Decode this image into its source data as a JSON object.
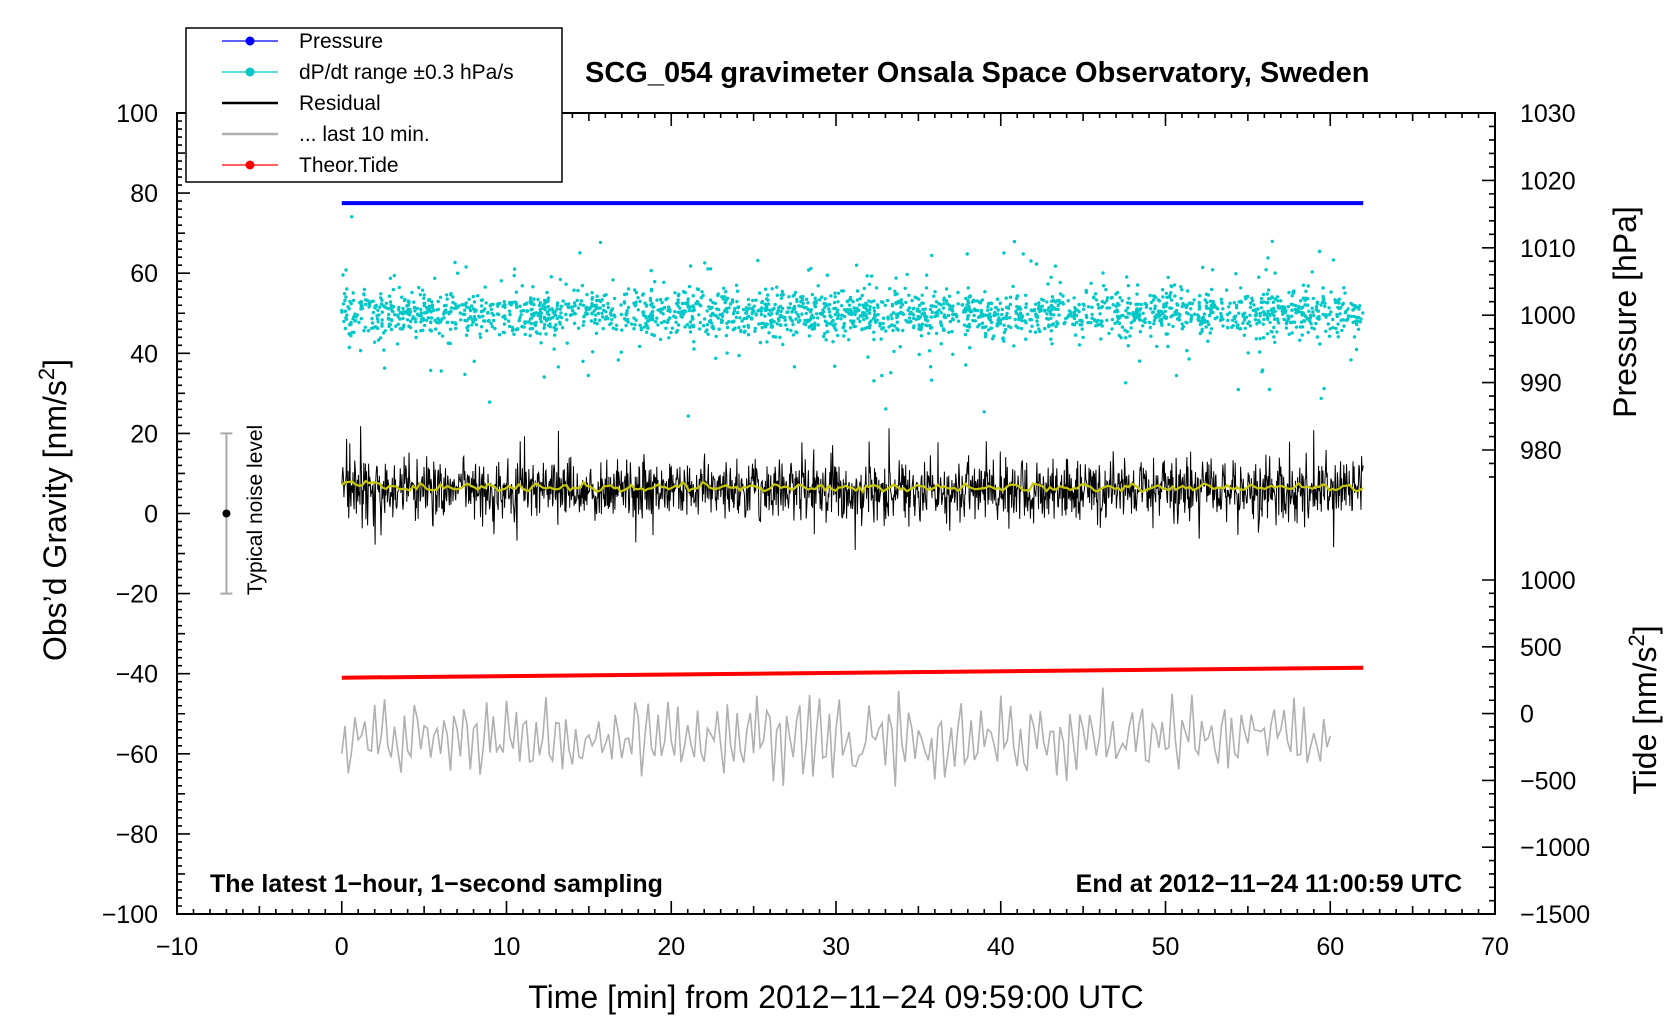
{
  "chart_data": {
    "type": "line",
    "title": "SCG_054 gravimeter Onsala Space Observatory, Sweden",
    "xlabel": "Time [min] from 2012−11−24 09:59:00 UTC",
    "ylabel_left": "Obs’d Gravity [nm/s2]",
    "ylabel_left_main": "Obs’d Gravity [nm/s",
    "ylabel_left_sup": "2",
    "ylabel_left_end": "]",
    "ylabel_right_pressure": "Pressure [hPa]",
    "ylabel_right_tide": "Tide [nm/s2]",
    "ylabel_right_tide_main": "Tide [nm/s",
    "ylabel_right_tide_sup": "2",
    "ylabel_right_tide_end": "]",
    "xlim": [
      -10,
      70
    ],
    "ylim_left": [
      -100,
      100
    ],
    "pressure_axis_range": [
      975,
      1030
    ],
    "tide_axis_range": [
      -1500,
      1000
    ],
    "x_ticks": [
      "−10",
      "0",
      "10",
      "20",
      "30",
      "40",
      "50",
      "60",
      "70"
    ],
    "y_ticks_left": [
      "100",
      "80",
      "60",
      "40",
      "20",
      "0",
      "−20",
      "−40",
      "−60",
      "−80",
      "−100"
    ],
    "y_ticks_pressure": [
      "1030",
      "1020",
      "1010",
      "1000",
      "990",
      "980"
    ],
    "y_ticks_tide": [
      "1000",
      "500",
      "0",
      "−500",
      "−1000",
      "−1500"
    ],
    "annotation_left": "The latest 1−hour, 1−second sampling",
    "annotation_right": "End at 2012−11−24 11:00:59 UTC",
    "noise_label": "Typical noise level",
    "noise_bar": {
      "x": -7,
      "center": 0,
      "low": -20,
      "high": 20
    },
    "legend": [
      {
        "label": "Pressure",
        "color": "#0000ff",
        "marker": true
      },
      {
        "label": "dP/dt range ±0.3 hPa/s",
        "color": "#00c8c8",
        "marker": true
      },
      {
        "label": "Residual",
        "color": "#000000",
        "marker": false
      },
      {
        "label": "... last 10 min.",
        "color": "#b0b0b0",
        "marker": false
      },
      {
        "label": "Theor.Tide",
        "color": "#ff0000",
        "marker": true
      }
    ],
    "series": [
      {
        "name": "Pressure",
        "color": "#0000ff",
        "x": [
          0,
          62
        ],
        "y": [
          77.5,
          77.5
        ]
      },
      {
        "name": "dP/dt range",
        "color": "#00c8c8",
        "x_range": [
          0,
          62
        ],
        "center": 50,
        "typical_spread": 5,
        "max_spread": 30
      },
      {
        "name": "Residual",
        "color": "#000000",
        "x_range": [
          0,
          62
        ],
        "center": 6,
        "min": -18,
        "max": 25
      },
      {
        "name": "Residual smoothed",
        "color": "#c8c800",
        "x_range": [
          0,
          62
        ],
        "center": 6.5
      },
      {
        "name": "Theor.Tide",
        "color": "#ff0000",
        "x": [
          0,
          62
        ],
        "y": [
          -41,
          -38.5
        ]
      },
      {
        "name": "... last 10 min.",
        "color": "#b0b0b0",
        "x_range": [
          0,
          60
        ],
        "center": -56,
        "min": -71,
        "max": -42
      }
    ]
  }
}
